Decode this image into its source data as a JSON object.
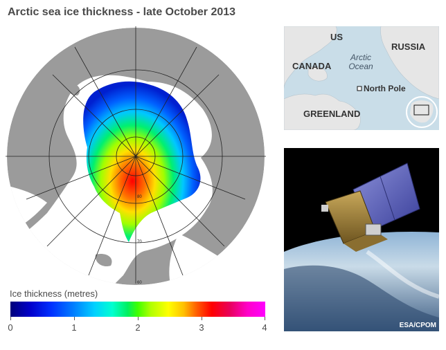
{
  "title": "Arctic sea ice thickness - late October 2013",
  "legend": {
    "label": "Ice thickness (metres)",
    "ticks": [
      "0",
      "1",
      "2",
      "3",
      "4"
    ],
    "range": [
      0,
      4
    ]
  },
  "map": {
    "latitude_labels": [
      "80",
      "70",
      "60"
    ]
  },
  "inset": {
    "labels": {
      "us": "US",
      "russia": "RUSSIA",
      "canada": "CANADA",
      "arctic_ocean_line1": "Arctic",
      "arctic_ocean_line2": "Ocean",
      "north_pole": "North Pole",
      "greenland": "GREENLAND"
    }
  },
  "photo": {
    "credit": "ESA/CPOM"
  },
  "colors": {
    "land": "#9b9b9b",
    "sea": "#ffffff",
    "inset_water": "#c9dde8",
    "inset_land": "#e6e6e6"
  }
}
